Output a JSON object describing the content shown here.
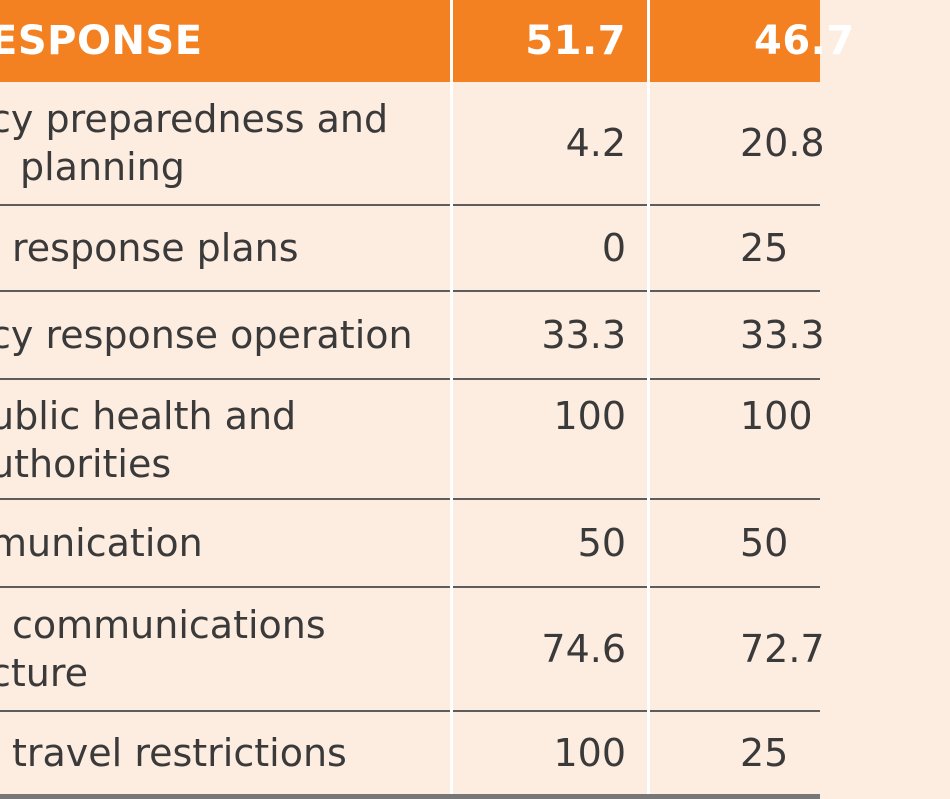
{
  "header": {
    "label": "ESPONSE",
    "value_1": "51.7",
    "value_2": "46.7"
  },
  "rows": [
    {
      "label_lines": [
        "cy preparedness and",
        "planning"
      ],
      "value_1": "4.2",
      "value_2": "20.8"
    },
    {
      "label_lines": [
        "response plans"
      ],
      "value_1": "0",
      "value_2": "25"
    },
    {
      "label_lines": [
        "cy response operation"
      ],
      "value_1": "33.3",
      "value_2": "33.3"
    },
    {
      "label_lines": [
        "ublic health and",
        "uthorities"
      ],
      "value_1": "100",
      "value_2": "100"
    },
    {
      "label_lines": [
        "munication"
      ],
      "value_1": "50",
      "value_2": "50"
    },
    {
      "label_lines": [
        "communications",
        "cture"
      ],
      "value_1": "74.6",
      "value_2": "72.7"
    },
    {
      "label_lines": [
        "travel restrictions"
      ],
      "value_1": "100",
      "value_2": "25"
    }
  ]
}
